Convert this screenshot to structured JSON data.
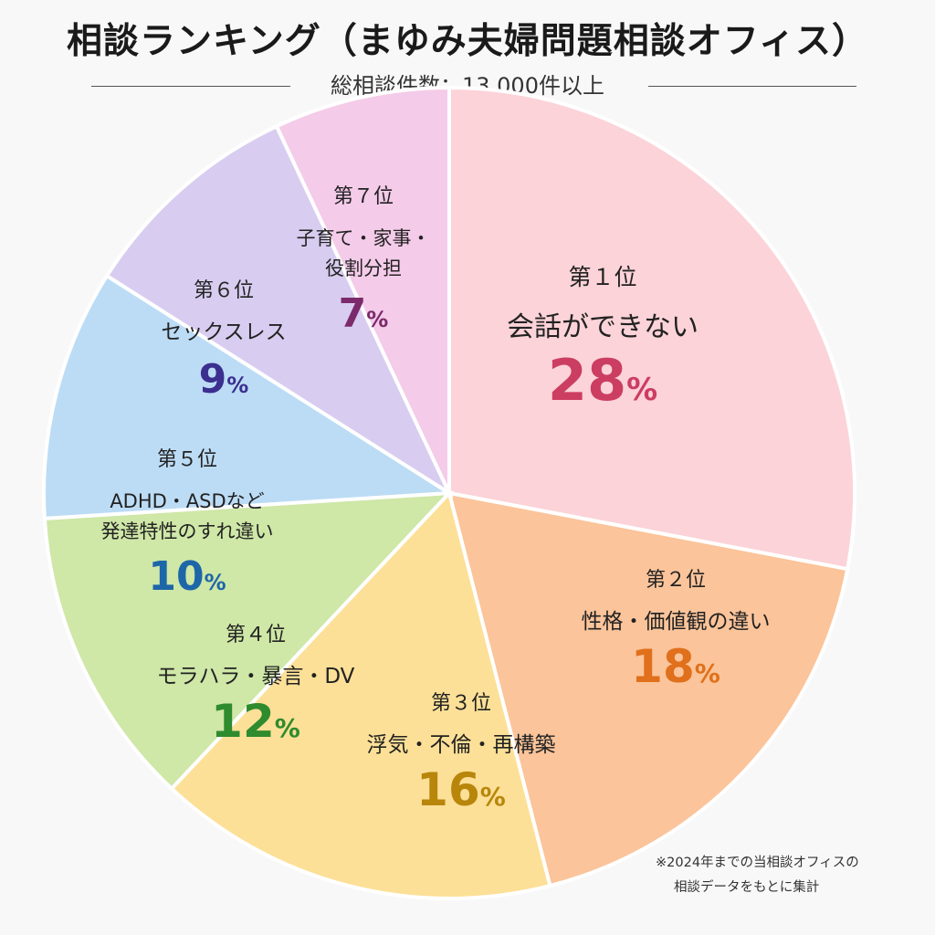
{
  "header": {
    "title": "相談ランキング（まゆみ夫婦問題相談オフィス）",
    "subtitle": "総相談件数：13,000件以上"
  },
  "chart_data": {
    "type": "pie",
    "unit": "%",
    "slices": [
      {
        "rank": "第１位",
        "label": [
          "会話ができない"
        ],
        "value": 28,
        "fill": "#fbd3d8",
        "accent": "#cc3d62"
      },
      {
        "rank": "第２位",
        "label": [
          "性格・価値観の違い"
        ],
        "value": 18,
        "fill": "#fbc49a",
        "accent": "#e0701b"
      },
      {
        "rank": "第３位",
        "label": [
          "浮気・不倫・再構築"
        ],
        "value": 16,
        "fill": "#fde097",
        "accent": "#b8860b"
      },
      {
        "rank": "第４位",
        "label": [
          "モラハラ・暴言・DV"
        ],
        "value": 12,
        "fill": "#cfe7a7",
        "accent": "#2e8b2e"
      },
      {
        "rank": "第５位",
        "label": [
          "ADHD・ASDなど",
          "発達特性のすれ違い"
        ],
        "value": 10,
        "fill": "#bcdcf5",
        "accent": "#1d66a8"
      },
      {
        "rank": "第６位",
        "label": [
          "セックスレス"
        ],
        "value": 9,
        "fill": "#d8cdf0",
        "accent": "#3b2f8f"
      },
      {
        "rank": "第７位",
        "label": [
          "子育て・家事・",
          "役割分担"
        ],
        "value": 7,
        "fill": "#f4cbe9",
        "accent": "#7b2a6b"
      }
    ]
  },
  "footnote": {
    "line1": "※2024年までの当相談オフィスの",
    "line2": "相談データをもとに集計"
  }
}
